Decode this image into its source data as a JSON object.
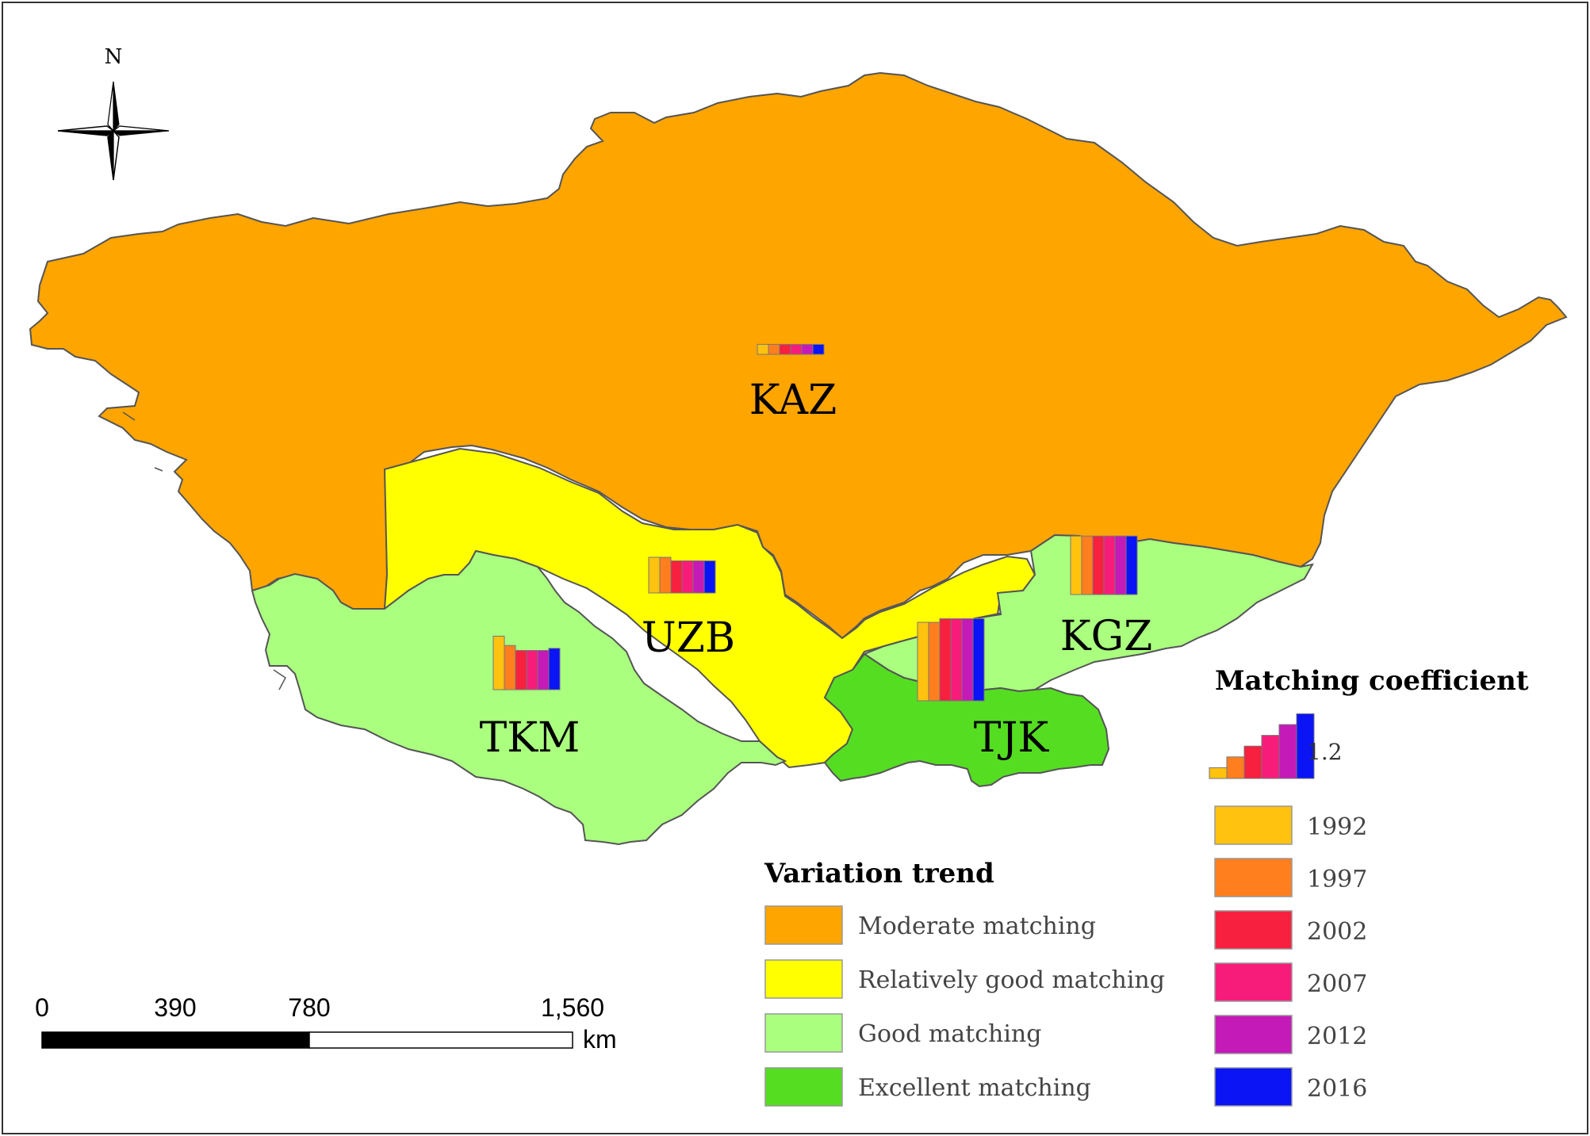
{
  "north_arrow": {
    "label": "N"
  },
  "regions": [
    {
      "code": "KAZ",
      "category": "Moderate matching",
      "fill": "#FFA500",
      "coefficients": [
        0.14,
        0.14,
        0.14,
        0.14,
        0.14,
        0.14
      ]
    },
    {
      "code": "UZB",
      "category": "Relatively good matching",
      "fill": "#FFFF00",
      "coefficients": [
        0.5,
        0.5,
        0.45,
        0.45,
        0.45,
        0.45
      ]
    },
    {
      "code": "TKM",
      "category": "Good matching",
      "fill": "#AAFF7F",
      "coefficients": [
        0.75,
        0.62,
        0.55,
        0.55,
        0.55,
        0.58
      ]
    },
    {
      "code": "KGZ",
      "category": "Good matching",
      "fill": "#AAFF7F",
      "coefficients": [
        0.82,
        0.82,
        0.82,
        0.82,
        0.82,
        0.82
      ]
    },
    {
      "code": "TJK",
      "category": "Excellent matching",
      "fill": "#55DD22",
      "coefficients": [
        1.1,
        1.1,
        1.15,
        1.15,
        1.15,
        1.15
      ]
    }
  ],
  "legend_trend": {
    "title": "Variation trend",
    "items": [
      {
        "label": "Moderate matching",
        "color": "#FFA500"
      },
      {
        "label": "Relatively good matching",
        "color": "#FFFF00"
      },
      {
        "label": "Good matching",
        "color": "#AAFF7F"
      },
      {
        "label": "Excellent matching",
        "color": "#55DD22"
      }
    ]
  },
  "legend_coefficient": {
    "title": "Matching coefficient",
    "scale_value": "1.2",
    "years": [
      {
        "label": "1992",
        "color": "#FFC20E"
      },
      {
        "label": "1997",
        "color": "#FF7F1F"
      },
      {
        "label": "2002",
        "color": "#F7203F"
      },
      {
        "label": "2007",
        "color": "#F71C7A"
      },
      {
        "label": "2012",
        "color": "#C41AB8"
      },
      {
        "label": "2016",
        "color": "#0A14F5"
      }
    ]
  },
  "scale_bar": {
    "ticks": [
      "0",
      "390",
      "780",
      "1,560"
    ],
    "unit": "km"
  }
}
